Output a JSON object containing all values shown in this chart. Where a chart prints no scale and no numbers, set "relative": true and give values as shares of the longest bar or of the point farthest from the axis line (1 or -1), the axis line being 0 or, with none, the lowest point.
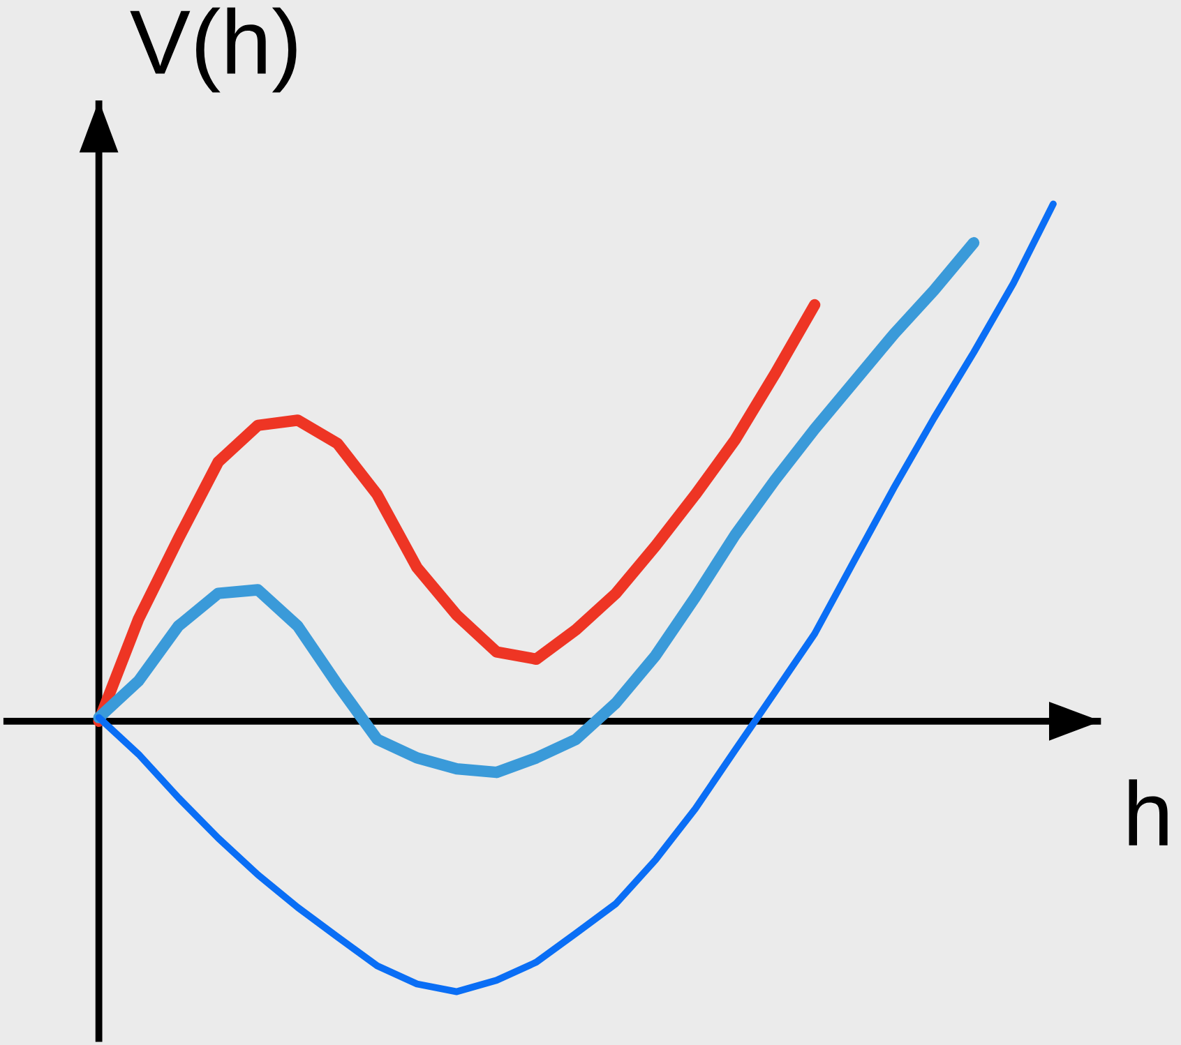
{
  "chart_data": {
    "type": "line",
    "relative": true,
    "xlabel": "h",
    "ylabel": "V(h)",
    "categories": [
      null,
      null,
      null,
      null,
      null,
      null,
      null,
      null,
      null,
      null,
      null,
      null,
      null,
      null,
      null,
      null,
      null,
      null,
      null,
      null,
      null,
      null,
      null,
      null,
      null
    ],
    "series": [
      {
        "color": "#ee3524",
        "values": [
          0,
          0.198,
          0.353,
          0.501,
          0.572,
          0.582,
          0.537,
          0.438,
          0.297,
          0.205,
          0.134,
          0.12,
          0.177,
          0.247,
          0.339,
          0.438,
          0.544,
          0.671,
          0.805,
          null,
          null,
          null,
          null,
          null,
          null
        ]
      },
      {
        "color": "#3a9ad9",
        "values": [
          0.007,
          0.078,
          0.184,
          0.247,
          0.254,
          0.184,
          0.071,
          -0.035,
          -0.071,
          -0.092,
          -0.099,
          -0.071,
          -0.035,
          0.035,
          0.127,
          0.24,
          0.36,
          0.466,
          0.565,
          0.657,
          0.749,
          0.833,
          0.925,
          null,
          null
        ]
      },
      {
        "color": "#0a6ef5",
        "values": [
          0.007,
          -0.064,
          -0.148,
          -0.226,
          -0.297,
          -0.36,
          -0.417,
          -0.473,
          -0.508,
          -0.523,
          -0.501,
          -0.466,
          -0.41,
          -0.353,
          -0.268,
          -0.169,
          -0.056,
          0.056,
          0.169,
          0.311,
          0.452,
          0.586,
          0.713,
          0.847,
          1
        ]
      }
    ]
  }
}
